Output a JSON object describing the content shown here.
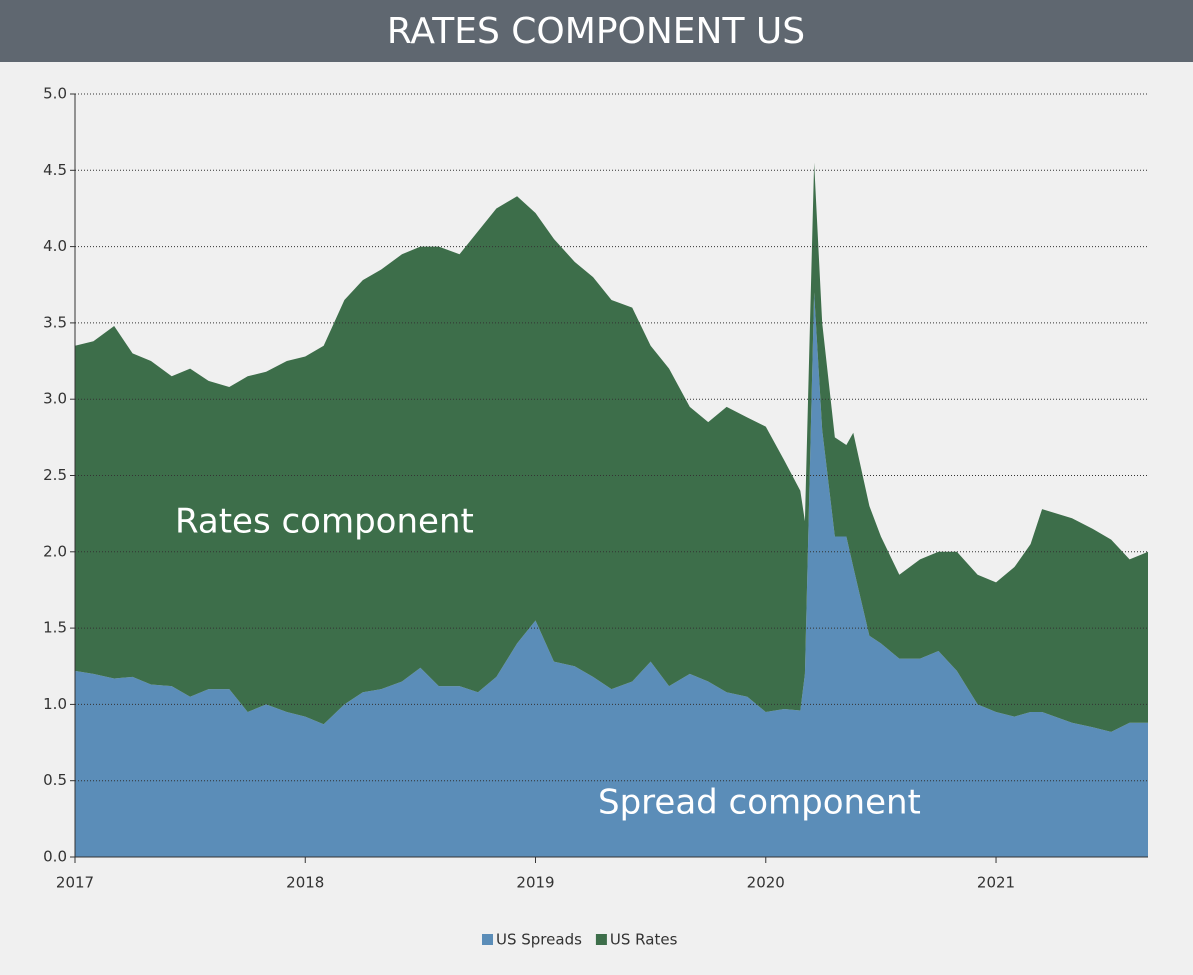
{
  "chart_data": {
    "type": "stacked_area",
    "title": "RATES COMPONENT US",
    "annotations": [
      "Rates component",
      "Spread component"
    ],
    "x": [
      2017.0,
      2017.08,
      2017.17,
      2017.25,
      2017.33,
      2017.42,
      2017.5,
      2017.58,
      2017.67,
      2017.75,
      2017.83,
      2017.92,
      2018.0,
      2018.08,
      2018.17,
      2018.25,
      2018.33,
      2018.42,
      2018.5,
      2018.58,
      2018.67,
      2018.75,
      2018.83,
      2018.92,
      2019.0,
      2019.08,
      2019.17,
      2019.25,
      2019.33,
      2019.42,
      2019.5,
      2019.58,
      2019.67,
      2019.75,
      2019.83,
      2019.92,
      2020.0,
      2020.08,
      2020.15,
      2020.17,
      2020.21,
      2020.245,
      2020.3,
      2020.35,
      2020.38,
      2020.45,
      2020.5,
      2020.58,
      2020.67,
      2020.75,
      2020.83,
      2020.92,
      2021.0,
      2021.08,
      2021.15,
      2021.2,
      2021.33,
      2021.42,
      2021.5,
      2021.58,
      2021.66
    ],
    "series": [
      {
        "name": "US Spreads",
        "color": "#5b8db8",
        "values": [
          1.22,
          1.2,
          1.17,
          1.18,
          1.13,
          1.12,
          1.05,
          1.1,
          1.1,
          0.95,
          1.0,
          0.95,
          0.92,
          0.87,
          1.0,
          1.08,
          1.1,
          1.15,
          1.24,
          1.12,
          1.12,
          1.08,
          1.18,
          1.4,
          1.55,
          1.28,
          1.25,
          1.18,
          1.1,
          1.15,
          1.28,
          1.12,
          1.2,
          1.15,
          1.08,
          1.05,
          0.95,
          0.97,
          0.96,
          1.2,
          3.7,
          2.8,
          2.1,
          2.1,
          1.9,
          1.45,
          1.4,
          1.3,
          1.3,
          1.35,
          1.22,
          1.0,
          0.95,
          0.92,
          0.95,
          0.95,
          0.88,
          0.85,
          0.82,
          0.88,
          0.88
        ]
      },
      {
        "name": "US Rates",
        "color": "#3d6e4a",
        "values": [
          2.13,
          2.18,
          2.31,
          2.12,
          2.12,
          2.03,
          2.15,
          2.02,
          1.98,
          2.2,
          2.18,
          2.3,
          2.36,
          2.48,
          2.65,
          2.7,
          2.75,
          2.8,
          2.76,
          2.88,
          2.83,
          3.02,
          3.07,
          2.93,
          2.67,
          2.77,
          2.65,
          2.62,
          2.55,
          2.45,
          2.07,
          2.08,
          1.75,
          1.7,
          1.87,
          1.83,
          1.87,
          1.63,
          1.44,
          1.0,
          0.85,
          0.7,
          0.65,
          0.6,
          0.88,
          0.85,
          0.7,
          0.55,
          0.65,
          0.65,
          0.78,
          0.85,
          0.85,
          0.98,
          1.1,
          1.33,
          1.34,
          1.3,
          1.26,
          1.07,
          1.12
        ]
      }
    ],
    "xlim": [
      2017,
      2021.66
    ],
    "xticks": [
      2017,
      2018,
      2019,
      2020,
      2021
    ],
    "ylim": [
      0,
      5
    ],
    "yticks": [
      {
        "value": 0,
        "label": "0.0"
      },
      0.5,
      {
        "value": 1,
        "label": "1.0"
      },
      1.5,
      {
        "value": 2,
        "label": "2.0"
      },
      2.5,
      {
        "value": 3,
        "label": "3.0"
      },
      3.5,
      {
        "value": 4,
        "label": "4.0"
      },
      4.5,
      {
        "value": 5,
        "label": "5.0"
      }
    ],
    "grid": true,
    "legend": "bottom"
  }
}
